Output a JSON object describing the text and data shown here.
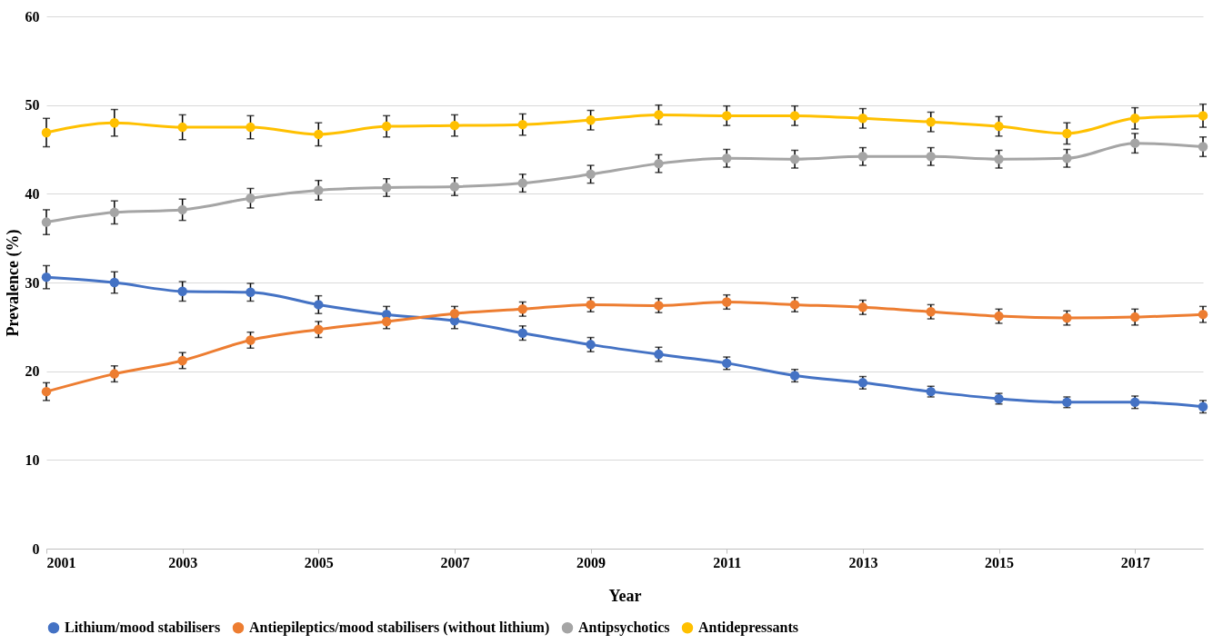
{
  "chart_data": {
    "type": "line",
    "xlabel": "Year",
    "ylabel": "Prevalence (%)",
    "x": [
      2001,
      2002,
      2003,
      2004,
      2005,
      2006,
      2007,
      2008,
      2009,
      2010,
      2011,
      2012,
      2013,
      2014,
      2015,
      2016,
      2017,
      2018
    ],
    "xlim": [
      2001,
      2018
    ],
    "xticks": [
      2001,
      2003,
      2005,
      2007,
      2009,
      2011,
      2013,
      2015,
      2017
    ],
    "ylim": [
      0,
      60
    ],
    "yticks": [
      0,
      10,
      20,
      30,
      40,
      50,
      60
    ],
    "grid": "y",
    "legend": "bottom",
    "marker": "circle",
    "line_style": "solid",
    "series": [
      {
        "name": "Lithium/mood stabilisers",
        "color": "#4472c4",
        "values": [
          30.6,
          30.0,
          29.0,
          28.9,
          27.5,
          26.4,
          25.7,
          24.3,
          23.0,
          21.9,
          20.9,
          19.5,
          18.7,
          17.7,
          16.9,
          16.5,
          16.5,
          16.0
        ],
        "errors": [
          1.3,
          1.2,
          1.1,
          1.0,
          1.0,
          0.9,
          0.9,
          0.8,
          0.8,
          0.8,
          0.7,
          0.7,
          0.7,
          0.6,
          0.6,
          0.6,
          0.7,
          0.7
        ]
      },
      {
        "name": "Antiepileptics/mood stabilisers (without lithium)",
        "color": "#ed7d31",
        "values": [
          17.7,
          19.7,
          21.2,
          23.5,
          24.7,
          25.6,
          26.5,
          27.0,
          27.5,
          27.4,
          27.8,
          27.5,
          27.2,
          26.7,
          26.2,
          26.0,
          26.1,
          26.4
        ],
        "errors": [
          1.0,
          0.9,
          0.9,
          0.9,
          0.9,
          0.8,
          0.8,
          0.8,
          0.8,
          0.8,
          0.8,
          0.8,
          0.8,
          0.8,
          0.8,
          0.8,
          0.9,
          0.9
        ]
      },
      {
        "name": "Antipsychotics",
        "color": "#a5a5a5",
        "values": [
          36.8,
          37.9,
          38.2,
          39.5,
          40.4,
          40.7,
          40.8,
          41.2,
          42.2,
          43.4,
          44.0,
          43.9,
          44.2,
          44.2,
          43.9,
          44.0,
          45.7,
          45.3
        ],
        "errors": [
          1.4,
          1.3,
          1.2,
          1.1,
          1.1,
          1.0,
          1.0,
          1.0,
          1.0,
          1.0,
          1.0,
          1.0,
          1.0,
          1.0,
          1.0,
          1.0,
          1.1,
          1.1
        ]
      },
      {
        "name": "Antidepressants",
        "color": "#ffc000",
        "values": [
          46.9,
          48.0,
          47.5,
          47.5,
          46.7,
          47.6,
          47.7,
          47.8,
          48.3,
          48.9,
          48.8,
          48.8,
          48.5,
          48.1,
          47.6,
          46.8,
          48.5,
          48.8
        ],
        "errors": [
          1.6,
          1.5,
          1.4,
          1.3,
          1.3,
          1.2,
          1.2,
          1.2,
          1.1,
          1.1,
          1.1,
          1.1,
          1.1,
          1.1,
          1.1,
          1.2,
          1.2,
          1.3
        ]
      }
    ]
  }
}
